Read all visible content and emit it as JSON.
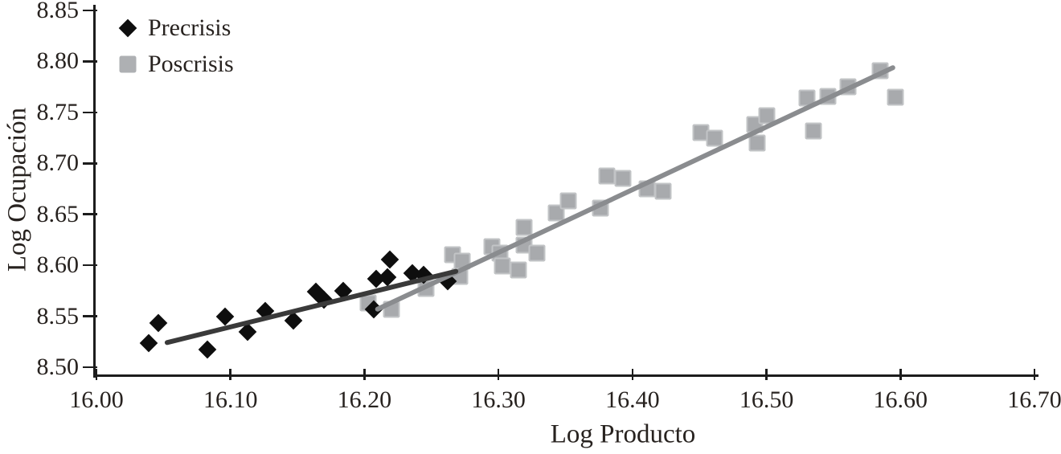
{
  "chart_data": {
    "type": "scatter",
    "title": "",
    "xlabel": "Log Producto",
    "ylabel": "Log Ocupación",
    "xlim": [
      16.0,
      16.7
    ],
    "ylim": [
      8.5,
      8.85
    ],
    "grid": false,
    "legend_position": "top-left",
    "x_ticks": {
      "values": [
        16.0,
        16.1,
        16.2,
        16.3,
        16.4,
        16.5,
        16.6,
        16.7
      ],
      "labels": [
        "16.00",
        "16.10",
        "16.20",
        "16.30",
        "16.40",
        "16.50",
        "16.60",
        "16.70"
      ]
    },
    "y_ticks": {
      "values": [
        8.5,
        8.55,
        8.6,
        8.65,
        8.7,
        8.75,
        8.8,
        8.85
      ],
      "labels": [
        "8.50",
        "8.55",
        "8.60",
        "8.65",
        "8.70",
        "8.75",
        "8.80",
        "8.85"
      ]
    },
    "series": [
      {
        "name": "Precrisis",
        "marker": "diamond",
        "color": "#0e0e0e",
        "points": [
          [
            16.039,
            8.524
          ],
          [
            16.046,
            8.543
          ],
          [
            16.083,
            8.517
          ],
          [
            16.096,
            8.55
          ],
          [
            16.113,
            8.535
          ],
          [
            16.126,
            8.555
          ],
          [
            16.147,
            8.546
          ],
          [
            16.164,
            8.574
          ],
          [
            16.17,
            8.566
          ],
          [
            16.184,
            8.575
          ],
          [
            16.207,
            8.557
          ],
          [
            16.209,
            8.587
          ],
          [
            16.217,
            8.588
          ],
          [
            16.219,
            8.606
          ],
          [
            16.236,
            8.592
          ],
          [
            16.244,
            8.591
          ],
          [
            16.262,
            8.584
          ]
        ],
        "trendline": {
          "x1": 16.051,
          "y1": 8.524,
          "x2": 16.27,
          "y2": 8.595,
          "color": "#3a3a3a"
        }
      },
      {
        "name": "Poscrisis",
        "marker": "square",
        "color": "#a8aaad",
        "points": [
          [
            16.203,
            8.563
          ],
          [
            16.22,
            8.557
          ],
          [
            16.246,
            8.577
          ],
          [
            16.266,
            8.61
          ],
          [
            16.273,
            8.604
          ],
          [
            16.271,
            8.589
          ],
          [
            16.295,
            8.618
          ],
          [
            16.301,
            8.612
          ],
          [
            16.303,
            8.599
          ],
          [
            16.315,
            8.595
          ],
          [
            16.319,
            8.637
          ],
          [
            16.319,
            8.62
          ],
          [
            16.329,
            8.612
          ],
          [
            16.343,
            8.651
          ],
          [
            16.352,
            8.663
          ],
          [
            16.376,
            8.656
          ],
          [
            16.381,
            8.688
          ],
          [
            16.393,
            8.685
          ],
          [
            16.411,
            8.675
          ],
          [
            16.423,
            8.673
          ],
          [
            16.451,
            8.73
          ],
          [
            16.461,
            8.725
          ],
          [
            16.491,
            8.738
          ],
          [
            16.5,
            8.747
          ],
          [
            16.493,
            8.72
          ],
          [
            16.535,
            8.732
          ],
          [
            16.53,
            8.764
          ],
          [
            16.546,
            8.766
          ],
          [
            16.561,
            8.775
          ],
          [
            16.585,
            8.791
          ],
          [
            16.596,
            8.765
          ]
        ],
        "trendline": {
          "x1": 16.208,
          "y1": 8.556,
          "x2": 16.596,
          "y2": 8.795,
          "color": "#8a8c8f"
        }
      }
    ]
  }
}
